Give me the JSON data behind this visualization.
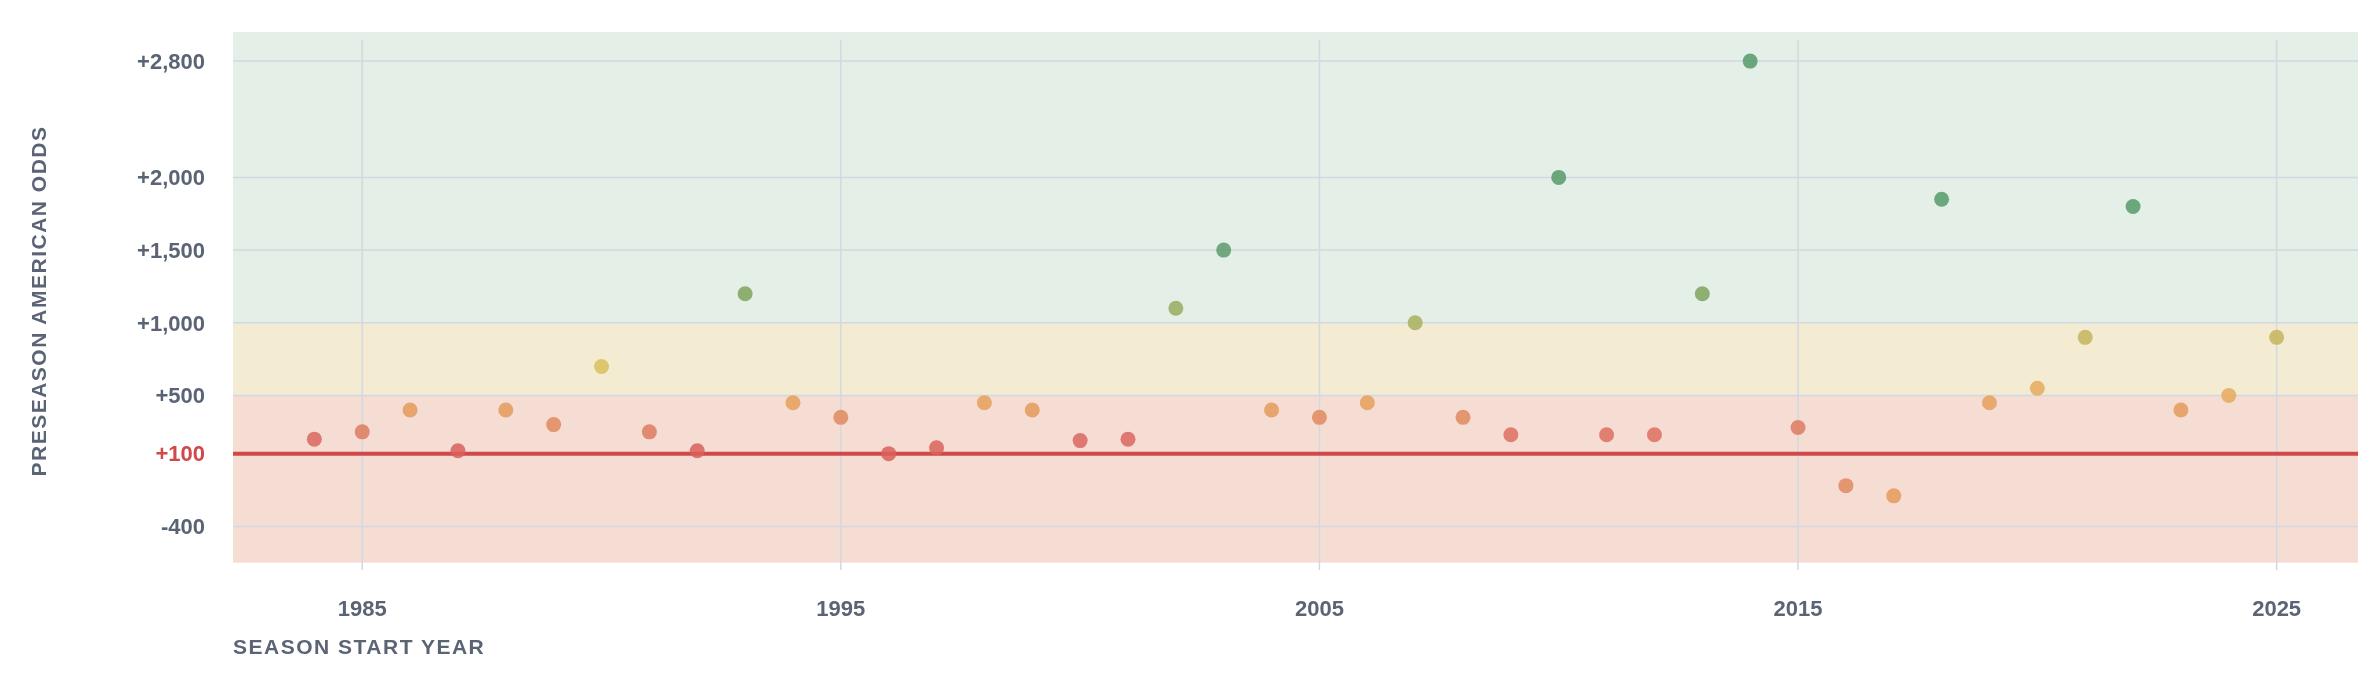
{
  "chart_data": {
    "type": "scatter",
    "xlabel": "SEASON START YEAR",
    "ylabel": "PRESEASON AMERICAN ODDS",
    "x": [
      1984,
      1985,
      1986,
      1987,
      1988,
      1989,
      1990,
      1991,
      1992,
      1993,
      1994,
      1995,
      1996,
      1997,
      1998,
      1999,
      2000,
      2001,
      2002,
      2003,
      2004,
      2005,
      2006,
      2007,
      2008,
      2009,
      2010,
      2011,
      2012,
      2013,
      2014,
      2015,
      2016,
      2017,
      2018,
      2019,
      2020,
      2021,
      2022,
      2023,
      2024,
      2025
    ],
    "values": [
      200,
      250,
      400,
      120,
      400,
      300,
      700,
      250,
      120,
      1200,
      450,
      350,
      100,
      140,
      450,
      400,
      190,
      200,
      1100,
      1500,
      400,
      350,
      450,
      1000,
      350,
      230,
      2000,
      230,
      230,
      1200,
      2800,
      280,
      -120,
      -190,
      1850,
      450,
      550,
      900,
      1800,
      400,
      500,
      900
    ],
    "colors": [
      "#d9675f",
      "#dd7a5f",
      "#e59a5c",
      "#d9605a",
      "#e59a5c",
      "#e08a5e",
      "#d8c05a",
      "#dd7a5f",
      "#d9605a",
      "#7fa35c",
      "#e5a05c",
      "#e08a5e",
      "#d9605a",
      "#d9645c",
      "#e5a05c",
      "#e59a5c",
      "#d9675f",
      "#d9675f",
      "#95ad5e",
      "#5f9a6a",
      "#e59a5c",
      "#e08a5e",
      "#e5a05c",
      "#a8b05e",
      "#e08a5e",
      "#dd705f",
      "#569a6a",
      "#dd705f",
      "#dd705f",
      "#7fa35c",
      "#569a6a",
      "#dd7a5f",
      "#e08a5e",
      "#e59a5c",
      "#569a6a",
      "#e5a05c",
      "#e5aa5c",
      "#c4b45c",
      "#569a6a",
      "#e59a5c",
      "#e5aa5c",
      "#c4b45c"
    ],
    "marker": "circle",
    "grid": true,
    "xlim": [
      1982.3,
      2026.7
    ],
    "xticks": [
      1985,
      1995,
      2005,
      2015,
      2025
    ],
    "ylim": [
      -700,
      3000
    ],
    "yticks": [
      {
        "value": -400,
        "label": "-400"
      },
      {
        "value": 100,
        "label": "+100"
      },
      {
        "value": 500,
        "label": "+500"
      },
      {
        "value": 1000,
        "label": "+1,000"
      },
      {
        "value": 1500,
        "label": "+1,500"
      },
      {
        "value": 2000,
        "label": "+2,000"
      },
      {
        "value": 2800,
        "label": "+2,800"
      }
    ],
    "ref_lines": [
      {
        "axis": "y",
        "value": 100,
        "color": "#d04848"
      }
    ],
    "bands": [
      {
        "axis": "y",
        "from": 1000,
        "to": 3000,
        "color": "#e4efe7"
      },
      {
        "axis": "y",
        "from": 500,
        "to": 1000,
        "color": "#f3ecd3"
      },
      {
        "axis": "y",
        "from": -650,
        "to": 500,
        "color": "#f6ddd4"
      }
    ]
  }
}
